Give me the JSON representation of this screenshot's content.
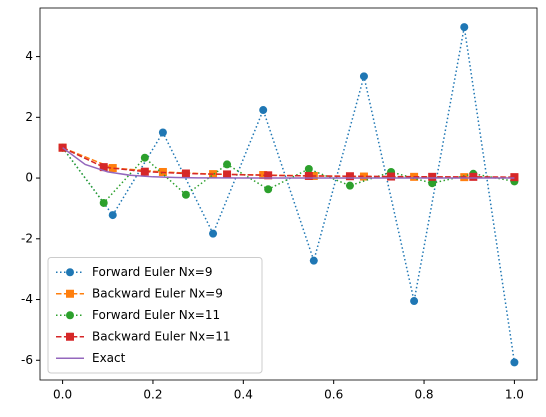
{
  "chart_data": {
    "type": "line",
    "xlim": [
      -0.05,
      1.05
    ],
    "ylim": [
      -6.65,
      5.6
    ],
    "xticks": [
      {
        "value": 0,
        "label": "0.0"
      },
      0.2,
      0.4,
      0.6,
      0.8,
      {
        "value": 1,
        "label": "1.0"
      }
    ],
    "yticks": [
      -6,
      -4,
      -2,
      0,
      2,
      4
    ],
    "legend": "lower left",
    "series": [
      {
        "name": "Forward Euler Nx=9",
        "color": "#1f77b4",
        "linestyle": "dotted",
        "marker": "circle",
        "x": [
          0,
          0.111,
          0.222,
          0.333,
          0.444,
          0.556,
          0.667,
          0.778,
          0.889,
          1
        ],
        "values": [
          1,
          -1.22,
          1.5,
          -1.83,
          2.24,
          -2.72,
          3.35,
          -4.05,
          4.97,
          -6.07
        ]
      },
      {
        "name": "Backward Euler Nx=9",
        "color": "#ff7f0e",
        "linestyle": "dashed",
        "marker": "square",
        "x": [
          0,
          0.111,
          0.222,
          0.333,
          0.444,
          0.556,
          0.667,
          0.778,
          0.889,
          1
        ],
        "values": [
          1,
          0.33,
          0.2,
          0.13,
          0.1,
          0.07,
          0.05,
          0.04,
          0.03,
          0.02
        ]
      },
      {
        "name": "Forward Euler Nx=11",
        "color": "#2ca02c",
        "linestyle": "dotted",
        "marker": "circle",
        "x": [
          0,
          0.091,
          0.182,
          0.273,
          0.364,
          0.455,
          0.545,
          0.636,
          0.727,
          0.818,
          0.909,
          1
        ],
        "values": [
          1,
          -0.82,
          0.67,
          -0.55,
          0.45,
          -0.37,
          0.3,
          -0.25,
          0.2,
          -0.17,
          0.14,
          -0.11
        ]
      },
      {
        "name": "Backward Euler Nx=11",
        "color": "#d62728",
        "linestyle": "dashed",
        "marker": "square",
        "x": [
          0,
          0.091,
          0.182,
          0.273,
          0.364,
          0.455,
          0.545,
          0.636,
          0.727,
          0.818,
          0.909,
          1
        ],
        "values": [
          1,
          0.36,
          0.21,
          0.15,
          0.12,
          0.09,
          0.07,
          0.06,
          0.05,
          0.04,
          0.04,
          0.03
        ]
      },
      {
        "name": "Exact",
        "color": "#9467bd",
        "linestyle": "solid",
        "marker": "none",
        "x": [
          0,
          0.05,
          0.1,
          0.15,
          0.2,
          0.25,
          0.3,
          0.35,
          0.4,
          0.45,
          0.5,
          0.55,
          0.6,
          0.65,
          0.7,
          0.75,
          0.8,
          0.85,
          0.9,
          0.95,
          1
        ],
        "values": [
          1,
          0.449,
          0.202,
          0.091,
          0.041,
          0.018,
          0.008,
          0.004,
          0.002,
          0.001,
          0,
          0,
          0,
          0,
          0,
          0,
          0,
          0,
          0,
          0,
          0
        ]
      }
    ]
  }
}
